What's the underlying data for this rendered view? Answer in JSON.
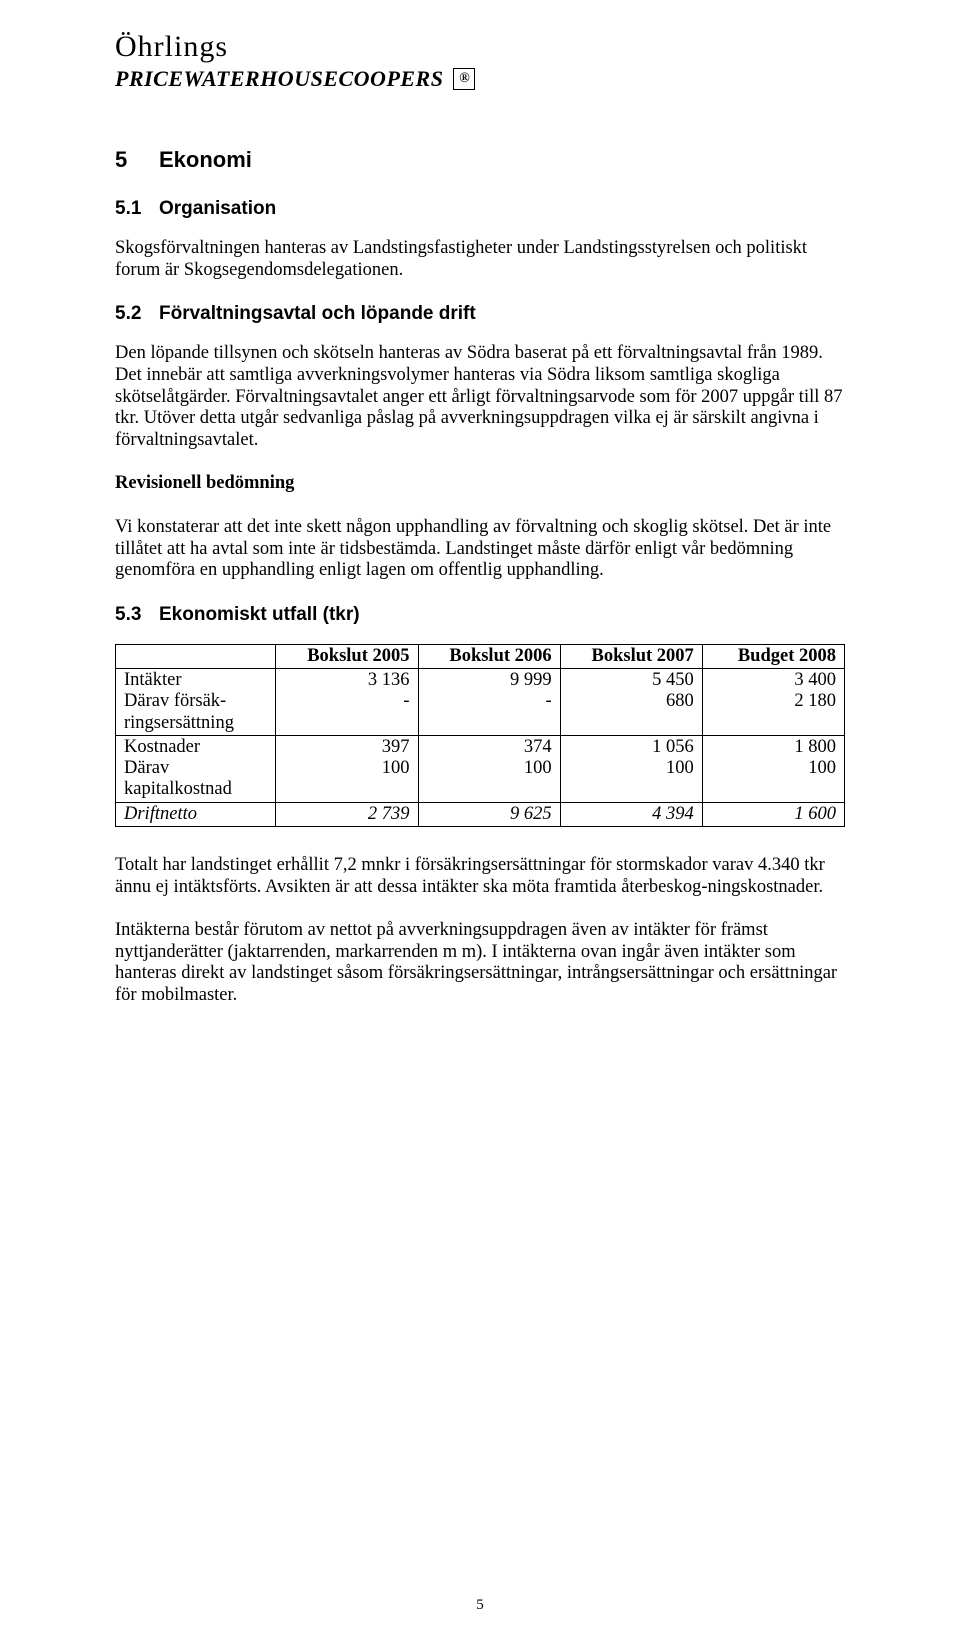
{
  "logo": {
    "line1": "Öhrlings",
    "line2": "PRICEWATERHOUSECOOPERS",
    "box": "®"
  },
  "h1": {
    "num": "5",
    "text": "Ekonomi"
  },
  "s51": {
    "num": "5.1",
    "title": "Organisation",
    "p1": "Skogsförvaltningen hanteras av Landstingsfastigheter under Landstingsstyrelsen och politiskt forum är Skogsegendomsdelegationen."
  },
  "s52": {
    "num": "5.2",
    "title": "Förvaltningsavtal och löpande drift",
    "p1": "Den löpande tillsynen och skötseln hanteras av Södra baserat på ett förvaltningsavtal från 1989. Det innebär att samtliga avverkningsvolymer hanteras via Södra liksom samtliga skogliga skötselåtgärder. Förvaltningsavtalet anger ett årligt förvaltningsarvode som för 2007 uppgår till 87 tkr. Utöver detta utgår sedvanliga påslag på avverkningsuppdragen vilka ej är särskilt angivna i förvaltningsavtalet.",
    "rev_title": "Revisionell bedömning",
    "p2": "Vi konstaterar att det inte skett någon upphandling av förvaltning och skoglig skötsel. Det är inte tillåtet att ha avtal som inte är tidsbestämda. Landstinget måste därför enligt vår bedömning genomföra en upphandling enligt lagen om offentlig upphandling."
  },
  "s53": {
    "num": "5.3",
    "title": "Ekonomiskt utfall (tkr)",
    "table": {
      "columns": [
        "",
        "Bokslut 2005",
        "Bokslut 2006",
        "Bokslut 2007",
        "Budget 2008"
      ],
      "col_widths": [
        "22%",
        "19.5%",
        "19.5%",
        "19.5%",
        "19.5%"
      ],
      "rows": [
        {
          "label": "Intäkter\nDärav försäk-\nringsersättning",
          "cells": [
            "3 136\n-",
            "9 999\n-",
            "5 450\n680",
            "3 400\n2 180"
          ],
          "italic": false
        },
        {
          "label": "Kostnader\nDärav\nkapitalkostnad",
          "cells": [
            "397\n100",
            "374\n100",
            "1 056\n100",
            "1 800\n100"
          ],
          "italic": false
        },
        {
          "label": "Driftnetto",
          "cells": [
            "2 739",
            "9 625",
            "4 394",
            "1 600"
          ],
          "italic": true
        }
      ]
    },
    "p1": "Totalt har landstinget erhållit 7,2 mnkr i försäkringsersättningar för stormskador varav 4.340 tkr ännu ej intäktsförts. Avsikten är att dessa intäkter ska möta framtida återbeskog-ningskostnader.",
    "p2": "Intäkterna består förutom av nettot på avverkningsuppdragen även av intäkter för främst nyttjanderätter (jaktarrenden, markarrenden m m). I intäkterna ovan ingår även intäkter som hanteras direkt av landstinget såsom försäkringsersättningar, intrångsersättningar och ersättningar för mobilmaster."
  },
  "page_number": "5"
}
